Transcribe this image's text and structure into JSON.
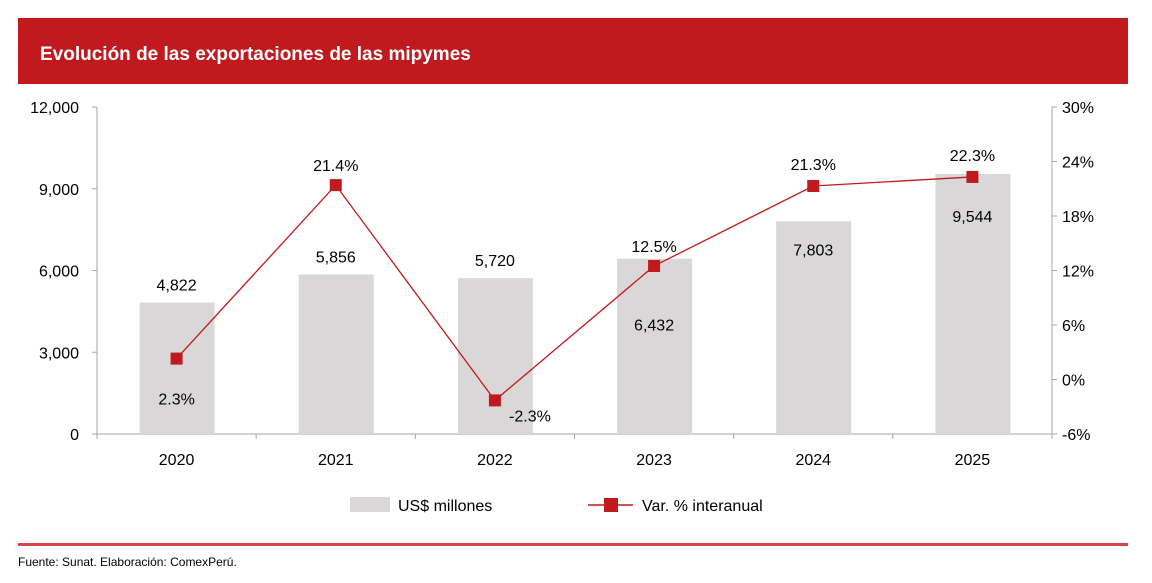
{
  "header": {
    "title": "Evolución de las exportaciones de las mipymes"
  },
  "footer": {
    "source": "Fuente: Sunat. Elaboración: ComexPerú."
  },
  "colors": {
    "header": "#c0191e",
    "bar": "#d9d7d8",
    "line": "#c0191e"
  },
  "chart_data": {
    "type": "bar+line",
    "title": "Evolución de las exportaciones de las mipymes",
    "categories": [
      "2020",
      "2021",
      "2022",
      "2023",
      "2024",
      "2025"
    ],
    "series": [
      {
        "name": "US$ millones",
        "type": "bar",
        "axis": "left",
        "values": [
          4822,
          5856,
          5720,
          6432,
          7803,
          9544
        ],
        "labels": [
          "4,822",
          "5,856",
          "5,720",
          "6,432",
          "7,803",
          "9,544"
        ]
      },
      {
        "name": "Var. % interanual",
        "type": "line",
        "axis": "right",
        "values": [
          2.3,
          21.4,
          -2.3,
          12.5,
          21.3,
          22.3
        ],
        "labels": [
          "2.3%",
          "21.4%",
          "-2.3%",
          "12.5%",
          "21.3%",
          "22.3%"
        ]
      }
    ],
    "left_axis": {
      "ylim": [
        0,
        12000
      ],
      "ticks": [
        "0",
        "3,000",
        "6,000",
        "9,000",
        "12,000"
      ]
    },
    "right_axis": {
      "ylim": [
        -6,
        30
      ],
      "ticks": [
        "-6%",
        "0%",
        "6%",
        "12%",
        "18%",
        "24%",
        "30%"
      ]
    },
    "legend": {
      "placement": "bottom",
      "items": [
        "US$ millones",
        "Var. % interanual"
      ]
    },
    "grid": false
  }
}
